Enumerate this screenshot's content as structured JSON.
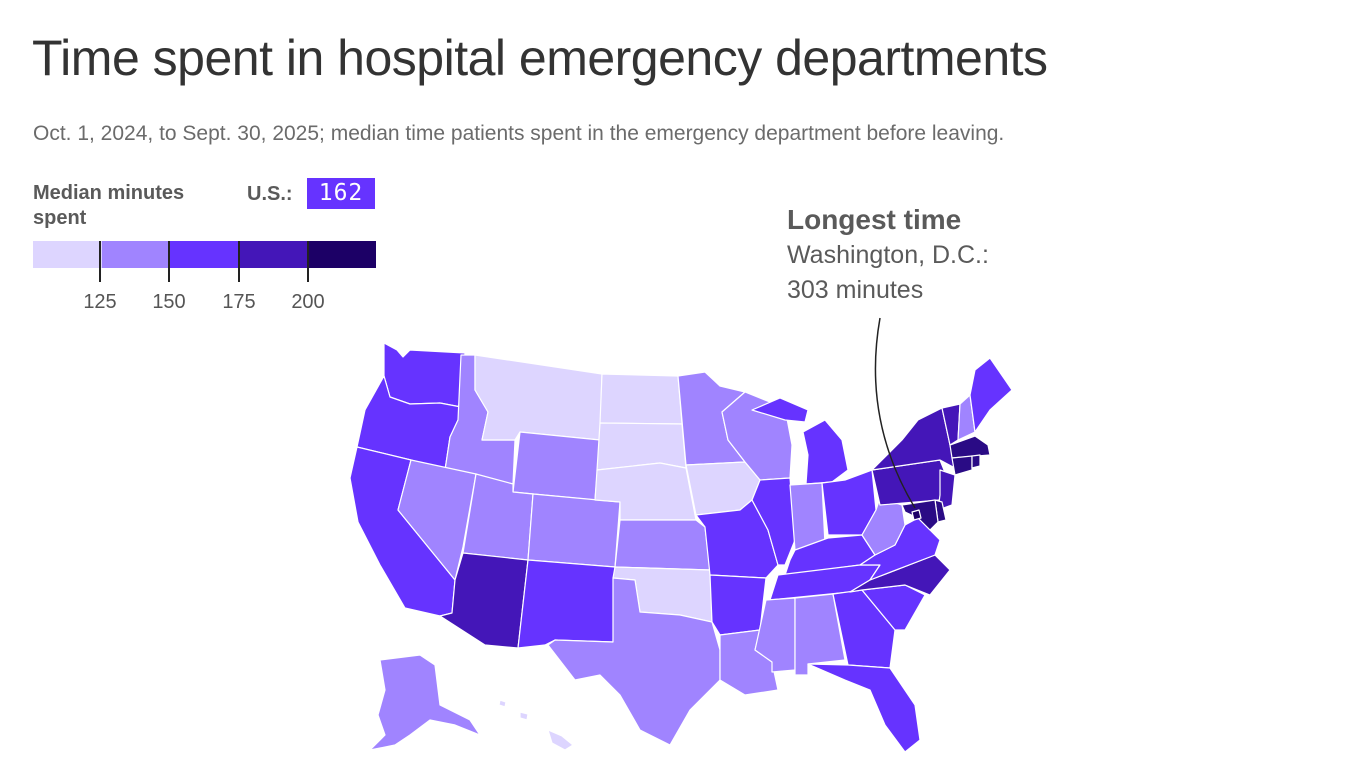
{
  "title": "Time spent in hospital emergency departments",
  "subtitle": "Oct. 1, 2024, to Sept. 30, 2025; median time patients spent in the emergency department before leaving.",
  "legend": {
    "title": "Median minutes spent",
    "us_label": "U.S.:",
    "us_value": "162",
    "ticks": [
      "125",
      "150",
      "175",
      "200"
    ],
    "colors": [
      "#ddd5ff",
      "#a084ff",
      "#6633ff",
      "#4416b8",
      "#2a0b85",
      "#1c0066"
    ]
  },
  "annotation": {
    "heading": "Longest time",
    "line1": "Washington, D.C.:",
    "line2": "303 minutes"
  },
  "map": {
    "bucket_colors": [
      "#ddd5ff",
      "#a084ff",
      "#6633ff",
      "#4416b8",
      "#2a0b85",
      "#1c0066"
    ],
    "states": [
      {
        "code": "WA",
        "bucket": 2
      },
      {
        "code": "OR",
        "bucket": 2
      },
      {
        "code": "CA",
        "bucket": 2
      },
      {
        "code": "ID",
        "bucket": 1
      },
      {
        "code": "NV",
        "bucket": 1
      },
      {
        "code": "MT",
        "bucket": 0
      },
      {
        "code": "WY",
        "bucket": 1
      },
      {
        "code": "UT",
        "bucket": 1
      },
      {
        "code": "AZ",
        "bucket": 3
      },
      {
        "code": "CO",
        "bucket": 1
      },
      {
        "code": "NM",
        "bucket": 2
      },
      {
        "code": "ND",
        "bucket": 0
      },
      {
        "code": "SD",
        "bucket": 0
      },
      {
        "code": "NE",
        "bucket": 0
      },
      {
        "code": "KS",
        "bucket": 1
      },
      {
        "code": "OK",
        "bucket": 0
      },
      {
        "code": "TX",
        "bucket": 1
      },
      {
        "code": "MN",
        "bucket": 1
      },
      {
        "code": "IA",
        "bucket": 0
      },
      {
        "code": "MO",
        "bucket": 2
      },
      {
        "code": "AR",
        "bucket": 2
      },
      {
        "code": "LA",
        "bucket": 1
      },
      {
        "code": "WI",
        "bucket": 1
      },
      {
        "code": "IL",
        "bucket": 2
      },
      {
        "code": "MI",
        "bucket": 2
      },
      {
        "code": "IN",
        "bucket": 1
      },
      {
        "code": "OH",
        "bucket": 2
      },
      {
        "code": "KY",
        "bucket": 2
      },
      {
        "code": "TN",
        "bucket": 2
      },
      {
        "code": "MS",
        "bucket": 1
      },
      {
        "code": "AL",
        "bucket": 1
      },
      {
        "code": "GA",
        "bucket": 2
      },
      {
        "code": "FL",
        "bucket": 2
      },
      {
        "code": "SC",
        "bucket": 2
      },
      {
        "code": "NC",
        "bucket": 3
      },
      {
        "code": "VA",
        "bucket": 2
      },
      {
        "code": "WV",
        "bucket": 1
      },
      {
        "code": "PA",
        "bucket": 3
      },
      {
        "code": "NY",
        "bucket": 3
      },
      {
        "code": "VT",
        "bucket": 3
      },
      {
        "code": "NH",
        "bucket": 1
      },
      {
        "code": "ME",
        "bucket": 2
      },
      {
        "code": "MA",
        "bucket": 4
      },
      {
        "code": "RI",
        "bucket": 4
      },
      {
        "code": "CT",
        "bucket": 4
      },
      {
        "code": "NJ",
        "bucket": 3
      },
      {
        "code": "DE",
        "bucket": 4
      },
      {
        "code": "MD",
        "bucket": 4
      },
      {
        "code": "DC",
        "bucket": 5
      },
      {
        "code": "AK",
        "bucket": 1
      },
      {
        "code": "HI",
        "bucket": 0
      }
    ]
  }
}
